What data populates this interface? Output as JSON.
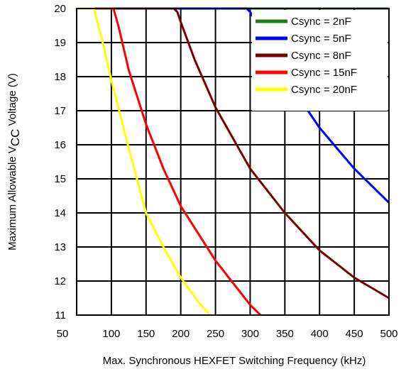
{
  "chart_data": {
    "type": "line",
    "xlabel": "Max. Synchronous HEXFET Switching Frequency (kHz)",
    "ylabel": {
      "prefix": "Maximum Allowable V",
      "subscript": "CC",
      "suffix": " Voltage (V)"
    },
    "xlim": [
      50,
      500
    ],
    "ylim": [
      11,
      20
    ],
    "xticks": [
      50,
      100,
      150,
      200,
      250,
      300,
      350,
      400,
      450,
      500
    ],
    "yticks": [
      11,
      12,
      13,
      14,
      15,
      16,
      17,
      18,
      19,
      20
    ],
    "grid": true,
    "legend_position": "top-right",
    "series": [
      {
        "name": "Csync = 2nF",
        "color": "#1a7f1a",
        "x": [
          50,
          500
        ],
        "y": [
          20,
          20
        ]
      },
      {
        "name": "Csync = 5nF",
        "color": "#0000ff",
        "x": [
          50,
          295,
          300,
          320,
          350,
          400,
          450,
          500
        ],
        "y": [
          20,
          20,
          19.9,
          19.2,
          18.0,
          16.5,
          15.3,
          14.3
        ]
      },
      {
        "name": "Csync = 8nF",
        "color": "#7a0000",
        "x": [
          50,
          190,
          195,
          200,
          220,
          250,
          300,
          350,
          400,
          450,
          500
        ],
        "y": [
          20,
          20,
          19.9,
          19.6,
          18.5,
          17.1,
          15.3,
          14.0,
          12.9,
          12.1,
          11.5
        ]
      },
      {
        "name": "Csync = 15nF",
        "color": "#ff0000",
        "x": [
          50,
          103,
          110,
          125,
          150,
          175,
          200,
          250,
          300,
          315
        ],
        "y": [
          20,
          20,
          19.5,
          18.2,
          16.6,
          15.3,
          14.2,
          12.6,
          11.3,
          11.0
        ]
      },
      {
        "name": "Csync = 20nF",
        "color": "#ffff00",
        "x": [
          50,
          75,
          80,
          90,
          100,
          125,
          150,
          175,
          200,
          225,
          242
        ],
        "y": [
          20,
          20,
          19.6,
          18.8,
          17.9,
          15.9,
          14.0,
          13.0,
          12.1,
          11.4,
          11.0
        ]
      }
    ]
  }
}
